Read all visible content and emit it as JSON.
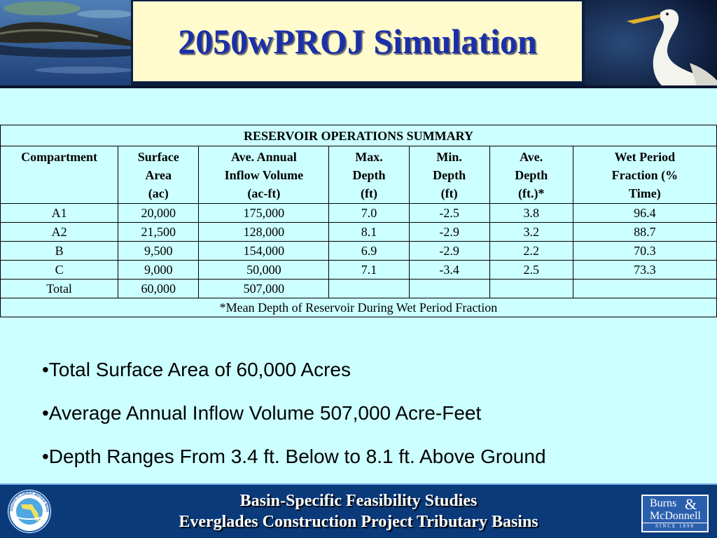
{
  "title": "2050wPROJ Simulation",
  "table": {
    "caption": "RESERVOIR OPERATIONS SUMMARY",
    "headers": [
      [
        "Compartment"
      ],
      [
        "Surface",
        "Area",
        "(ac)"
      ],
      [
        "Ave. Annual",
        "Inflow Volume",
        "(ac-ft)"
      ],
      [
        "Max.",
        "Depth",
        "(ft)"
      ],
      [
        "Min.",
        "Depth",
        "(ft)"
      ],
      [
        "Ave.",
        "Depth",
        "(ft.)*"
      ],
      [
        "Wet Period",
        "Fraction (%",
        "Time)"
      ]
    ],
    "rows": [
      [
        "A1",
        "20,000",
        "175,000",
        "7.0",
        "-2.5",
        "3.8",
        "96.4"
      ],
      [
        "A2",
        "21,500",
        "128,000",
        "8.1",
        "-2.9",
        "3.2",
        "88.7"
      ],
      [
        "B",
        "9,500",
        "154,000",
        "6.9",
        "-2.9",
        "2.2",
        "70.3"
      ],
      [
        "C",
        "9,000",
        "50,000",
        "7.1",
        "-3.4",
        "2.5",
        "73.3"
      ],
      [
        "Total",
        "60,000",
        "507,000",
        "",
        "",
        "",
        ""
      ]
    ],
    "footnote": "*Mean Depth of Reservoir During Wet Period Fraction"
  },
  "bullets": [
    "•Total Surface Area of 60,000 Acres",
    "•Average Annual Inflow Volume 507,000 Acre-Feet",
    "•Depth Ranges From 3.4 ft. Below to 8.1 ft. Above Ground"
  ],
  "footer": {
    "line1": "Basin-Specific Feasibility Studies",
    "line2": "Everglades Construction Project Tributary Basins",
    "seal_text": "SOUTH FLORIDA WATER MANAGEMENT DISTRICT",
    "logo": {
      "burns": "Burns",
      "amp": "&",
      "mcdonnell": "McDonnell",
      "since": "SINCE 1898"
    }
  },
  "images": {
    "left": "alligator-photo",
    "right": "egret-photo"
  },
  "colors": {
    "background": "#ccffff",
    "title_box": "#fffbcc",
    "title_text": "#1a2fa8",
    "footer": "#0a3a7a"
  }
}
